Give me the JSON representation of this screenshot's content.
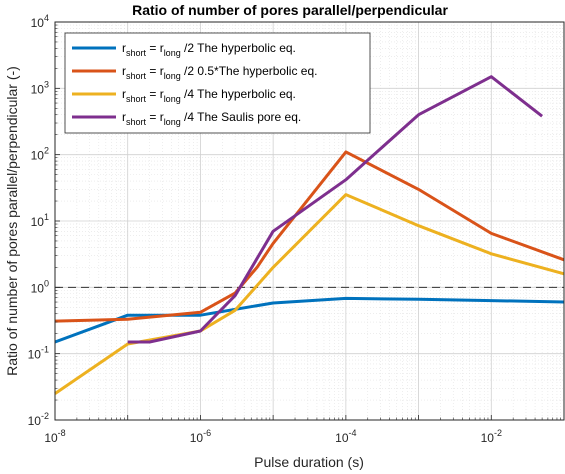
{
  "chart_data": {
    "type": "line",
    "title": "Ratio of number of pores parallel/perpendicular",
    "xlabel": "Pulse duration (s)",
    "ylabel": "Ratio of number of pores parallel/perpendicular (-)",
    "xscale": "log",
    "yscale": "log",
    "xlim": [
      1e-08,
      0.1
    ],
    "ylim": [
      0.01,
      10000
    ],
    "x_ticks": [
      1e-08,
      1e-06,
      0.0001,
      0.01
    ],
    "y_ticks": [
      0.01,
      0.1,
      1,
      10,
      100,
      1000,
      10000
    ],
    "grid": true,
    "minor_grid": true,
    "legend_position": "top-left",
    "reference_line": {
      "y": 1,
      "style": "dashed",
      "color": "#333333"
    },
    "series": [
      {
        "name": "r_short = r_long /2 The hyperbolic eq.",
        "legend": {
          "a": "r",
          "a_sub": "short",
          "b": " = r",
          "b_sub": "long",
          "c": " /2 The hyperbolic eq."
        },
        "color": "#0072BD",
        "x": [
          1e-08,
          1e-07,
          1e-06,
          1e-05,
          0.0001,
          0.001,
          0.01,
          0.1
        ],
        "y": [
          0.15,
          0.38,
          0.38,
          0.58,
          0.68,
          0.66,
          0.63,
          0.6
        ]
      },
      {
        "name": "r_short = r_long /2 0.5*The hyperbolic eq.",
        "legend": {
          "a": "r",
          "a_sub": "short",
          "b": " = r",
          "b_sub": "long",
          "c": " /2 0.5*The hyperbolic eq."
        },
        "color": "#D95319",
        "x": [
          1e-08,
          1e-07,
          1e-06,
          3e-06,
          6e-06,
          1e-05,
          0.0001,
          0.001,
          0.01,
          0.1
        ],
        "y": [
          0.31,
          0.33,
          0.42,
          0.82,
          2.0,
          4.6,
          110,
          30,
          6.5,
          2.6
        ]
      },
      {
        "name": "r_short = r_long /4 The hyperbolic eq.",
        "legend": {
          "a": "r",
          "a_sub": "short",
          "b": " = r",
          "b_sub": "long",
          "c": " /4 The hyperbolic eq."
        },
        "color": "#EDB120",
        "x": [
          1e-08,
          1e-07,
          1e-06,
          3e-06,
          1e-05,
          0.0001,
          0.001,
          0.01,
          0.1
        ],
        "y": [
          0.025,
          0.14,
          0.22,
          0.45,
          2.0,
          25,
          8.5,
          3.2,
          1.6
        ]
      },
      {
        "name": "r_short = r_long /4 The Saulis pore eq.",
        "legend": {
          "a": "r",
          "a_sub": "short",
          "b": " = r",
          "b_sub": "long",
          "c": " /4 The Saulis pore eq."
        },
        "color": "#7E2F8E",
        "x": [
          1e-07,
          2e-07,
          1e-06,
          3e-06,
          1e-05,
          0.0001,
          0.001,
          0.01,
          0.05
        ],
        "y": [
          0.15,
          0.15,
          0.22,
          0.75,
          7.0,
          42,
          400,
          1500,
          380
        ]
      }
    ]
  }
}
